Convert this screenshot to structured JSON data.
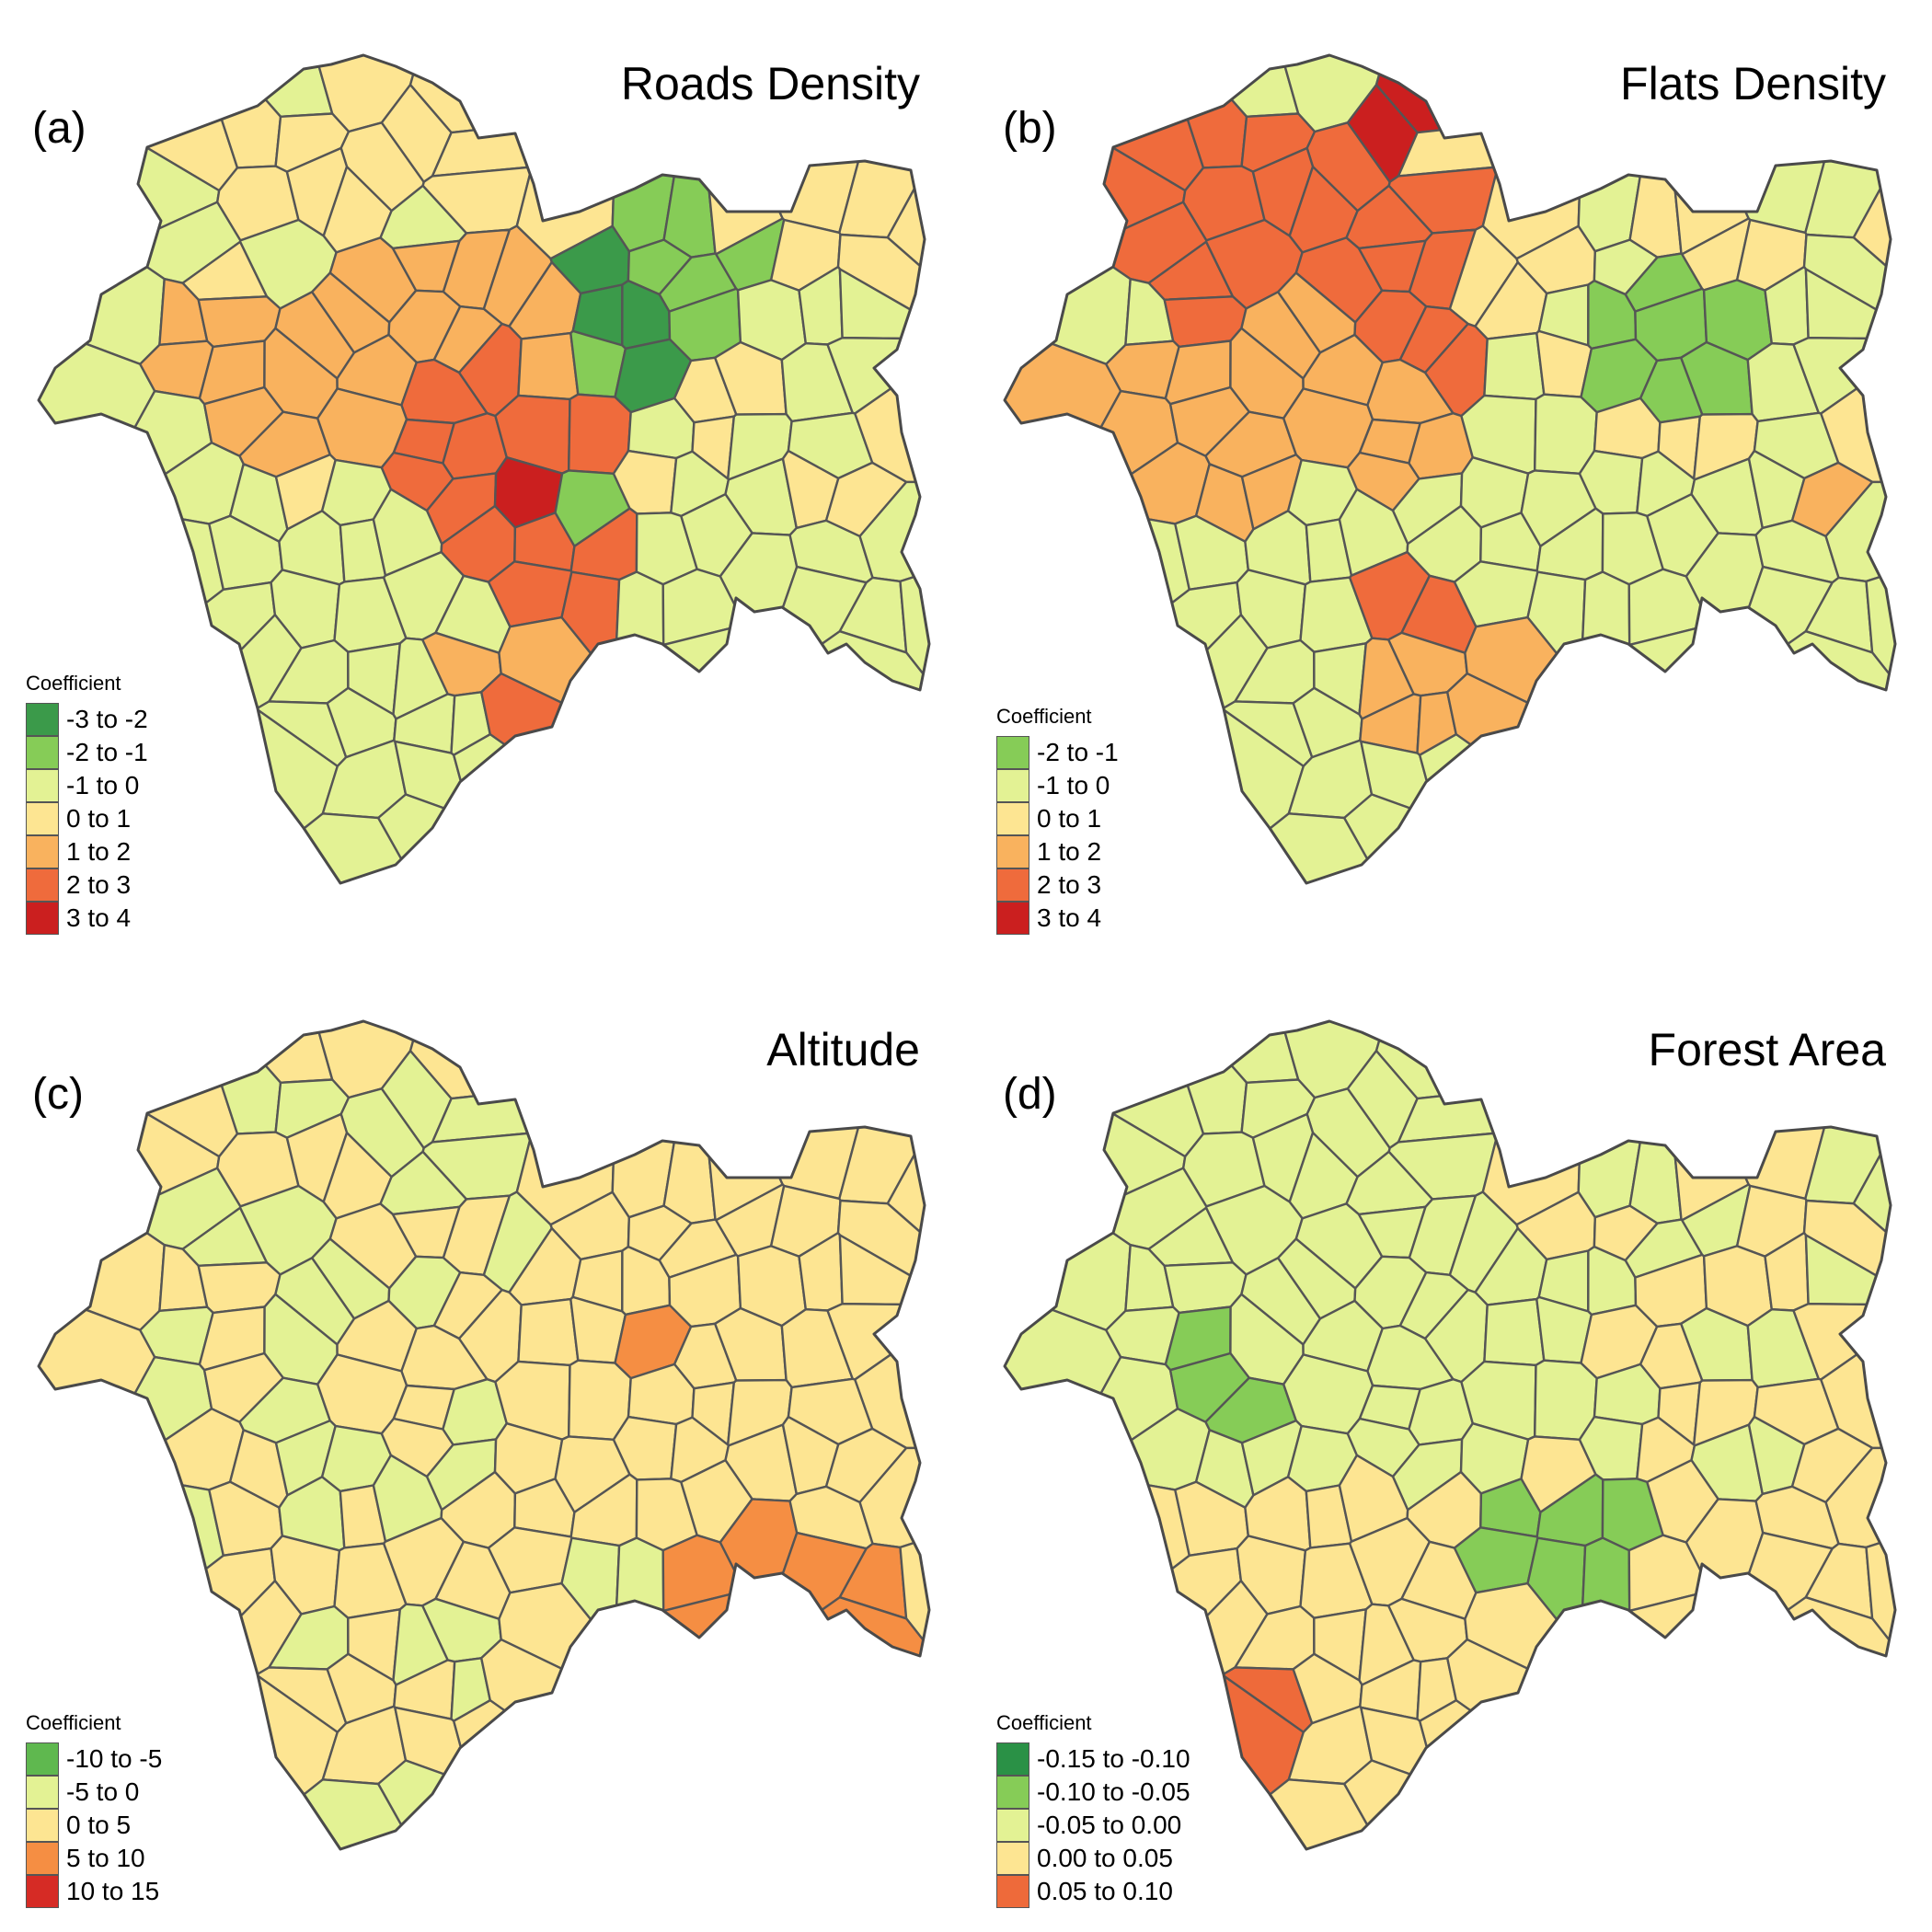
{
  "panels": [
    {
      "tag": "(a)",
      "title": "Roads Density",
      "legend_title": "Coefficient",
      "classes": [
        {
          "label": "-3 to -2",
          "color": "#3b9a4a"
        },
        {
          "label": "-2 to -1",
          "color": "#86cc57"
        },
        {
          "label": "-1 to 0",
          "color": "#e3f294"
        },
        {
          "label": "0 to 1",
          "color": "#fde592"
        },
        {
          "label": "1 to 2",
          "color": "#f9b25e"
        },
        {
          "label": "2 to 3",
          "color": "#ef6b3c"
        },
        {
          "label": "3 to 4",
          "color": "#cb1f1f"
        }
      ]
    },
    {
      "tag": "(b)",
      "title": "Flats Density",
      "legend_title": "Coefficient",
      "classes": [
        {
          "label": "-2 to -1",
          "color": "#86cc57"
        },
        {
          "label": "-1 to 0",
          "color": "#e3f294"
        },
        {
          "label": "0 to 1",
          "color": "#fde592"
        },
        {
          "label": "1 to 2",
          "color": "#f9b25e"
        },
        {
          "label": "2 to 3",
          "color": "#ef6b3c"
        },
        {
          "label": "3 to 4",
          "color": "#cb1f1f"
        }
      ]
    },
    {
      "tag": "(c)",
      "title": "Altitude",
      "legend_title": "Coefficient",
      "classes": [
        {
          "label": "-10 to -5",
          "color": "#5fb84f"
        },
        {
          "label": "-5 to 0",
          "color": "#e3f294"
        },
        {
          "label": "0 to 5",
          "color": "#fde592"
        },
        {
          "label": "5 to 10",
          "color": "#f58e43"
        },
        {
          "label": "10 to 15",
          "color": "#d62b25"
        }
      ]
    },
    {
      "tag": "(d)",
      "title": "Forest Area",
      "legend_title": "Coefficient",
      "classes": [
        {
          "label": "-0.15 to -0.10",
          "color": "#2a9146"
        },
        {
          "label": "-0.10 to -0.05",
          "color": "#86cc57"
        },
        {
          "label": "-0.05 to 0.00",
          "color": "#e3f294"
        },
        {
          "label": "0.00 to 0.05",
          "color": "#fde592"
        },
        {
          "label": "0.05 to 0.10",
          "color": "#ee6a3a"
        }
      ]
    }
  ]
}
